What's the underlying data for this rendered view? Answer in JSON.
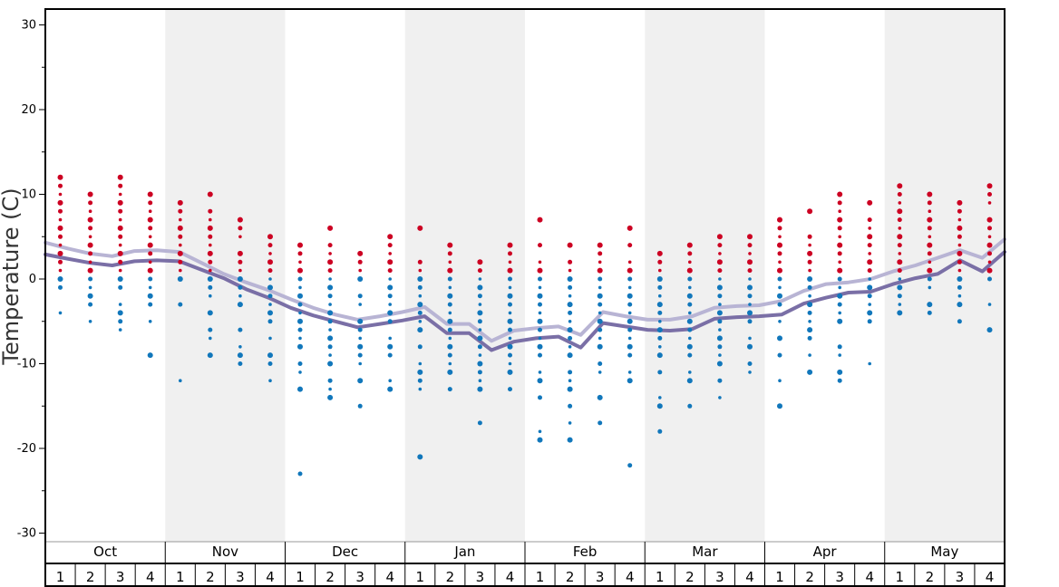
{
  "chart_data": {
    "type": "scatter",
    "ylabel": "Temperature (C)",
    "ylim": [
      -31,
      32
    ],
    "y_ticks": [
      30,
      20,
      10,
      0,
      -10,
      -20,
      -30
    ],
    "months": [
      "Oct",
      "Nov",
      "Dec",
      "Jan",
      "Feb",
      "Mar",
      "Apr",
      "May"
    ],
    "week_labels": [
      "1",
      "2",
      "3",
      "4"
    ],
    "colors": {
      "warm_dot": "#cc0022",
      "cold_dot": "#1177bb",
      "band_shade": "#f0f0f0",
      "line_light": "#b8b4d4",
      "line_dark": "#7a6fa6"
    },
    "series": [
      {
        "values": [
          4.3,
          3.6,
          3.0,
          2.7,
          3.3,
          3.4,
          3.2,
          1.9,
          0.6,
          -0.4,
          -1.3,
          -2.4,
          -3.4,
          -4.2,
          -4.8,
          -4.4,
          -3.9,
          -3.3,
          -5.3,
          -5.3,
          -7.3,
          -6.1,
          -5.8,
          -5.6,
          -6.6,
          -3.9,
          -4.4,
          -4.8,
          -4.8,
          -4.4,
          -3.4,
          -3.2,
          -3.1,
          -2.6,
          -1.4,
          -0.6,
          -0.4,
          0.0,
          0.9,
          1.6,
          2.5,
          3.4,
          2.5,
          4.7
        ]
      },
      {
        "values": [
          2.9,
          2.4,
          1.9,
          1.6,
          2.1,
          2.2,
          2.1,
          1.1,
          0.1,
          -1.2,
          -2.2,
          -3.4,
          -4.3,
          -5.0,
          -5.7,
          -5.3,
          -4.9,
          -4.4,
          -6.4,
          -6.4,
          -8.4,
          -7.4,
          -7.0,
          -6.8,
          -8.1,
          -5.2,
          -5.6,
          -6.0,
          -6.1,
          -5.9,
          -4.7,
          -4.5,
          -4.4,
          -4.2,
          -2.9,
          -2.2,
          -1.6,
          -1.5,
          -0.6,
          0.1,
          0.6,
          2.2,
          0.9,
          3.2
        ]
      }
    ],
    "dot_columns": [
      {
        "week": "Oct 1",
        "values": [
          12,
          11,
          10,
          9,
          8,
          7,
          6,
          5,
          4,
          3,
          2,
          1,
          0,
          -1,
          -4
        ]
      },
      {
        "week": "Oct 2",
        "values": [
          10,
          9,
          8,
          7,
          6,
          5,
          4,
          3,
          2,
          1,
          0,
          -1,
          -2,
          -3,
          -5
        ]
      },
      {
        "week": "Oct 3",
        "values": [
          12,
          11,
          10,
          9,
          8,
          7,
          6,
          5,
          4,
          3,
          2,
          1,
          0,
          -1,
          -3,
          -4,
          -5,
          -6
        ]
      },
      {
        "week": "Oct 4",
        "values": [
          10,
          9,
          8,
          7,
          6,
          5,
          4,
          3,
          2,
          1,
          0,
          -1,
          -2,
          -3,
          -5,
          -9
        ]
      },
      {
        "week": "Nov 1",
        "values": [
          9,
          8,
          7,
          6,
          5,
          4,
          3,
          2,
          1,
          0,
          -3,
          -12
        ]
      },
      {
        "week": "Nov 2",
        "values": [
          10,
          8,
          7,
          6,
          5,
          4,
          3,
          2,
          1,
          0,
          -1,
          -2,
          -4,
          -6,
          -7,
          -9
        ]
      },
      {
        "week": "Nov 3",
        "values": [
          7,
          6,
          5,
          3,
          2,
          1,
          0,
          -1,
          -2,
          -3,
          -6,
          -8,
          -9,
          -10
        ]
      },
      {
        "week": "Nov 4",
        "values": [
          5,
          4,
          3,
          2,
          1,
          0,
          -1,
          -2,
          -3,
          -4,
          -5,
          -7,
          -9,
          -10,
          -12
        ]
      },
      {
        "week": "Dec 1",
        "values": [
          4,
          3,
          2,
          1,
          0,
          -1,
          -2,
          -3,
          -4,
          -5,
          -6,
          -7,
          -8,
          -10,
          -11,
          -13,
          -23
        ]
      },
      {
        "week": "Dec 2",
        "values": [
          6,
          4,
          3,
          2,
          1,
          0,
          -1,
          -2,
          -3,
          -4,
          -5,
          -6,
          -7,
          -8,
          -9,
          -10,
          -12,
          -13,
          -14
        ]
      },
      {
        "week": "Dec 3",
        "values": [
          3,
          2,
          1,
          0,
          -2,
          -3,
          -5,
          -6,
          -7,
          -8,
          -9,
          -10,
          -12,
          -15
        ]
      },
      {
        "week": "Dec 4",
        "values": [
          5,
          4,
          3,
          2,
          1,
          0,
          -1,
          -2,
          -3,
          -4,
          -5,
          -7,
          -8,
          -9,
          -12,
          -13
        ]
      },
      {
        "week": "Jan 1",
        "values": [
          6,
          2,
          1,
          0,
          -1,
          -2,
          -3,
          -4,
          -5,
          -6,
          -8,
          -10,
          -11,
          -12,
          -13,
          -21
        ]
      },
      {
        "week": "Jan 2",
        "values": [
          4,
          3,
          2,
          1,
          0,
          -1,
          -2,
          -3,
          -4,
          -5,
          -6,
          -7,
          -8,
          -9,
          -10,
          -11,
          -13
        ]
      },
      {
        "week": "Jan 3",
        "values": [
          2,
          1,
          0,
          -1,
          -2,
          -3,
          -4,
          -5,
          -6,
          -7,
          -8,
          -9,
          -10,
          -11,
          -12,
          -13,
          -17
        ]
      },
      {
        "week": "Jan 4",
        "values": [
          4,
          3,
          2,
          1,
          0,
          -1,
          -2,
          -3,
          -4,
          -5,
          -6,
          -7,
          -8,
          -9,
          -10,
          -11,
          -13
        ]
      },
      {
        "week": "Feb 1",
        "values": [
          7,
          4,
          2,
          1,
          0,
          -1,
          -2,
          -3,
          -4,
          -5,
          -6,
          -7,
          -8,
          -9,
          -11,
          -12,
          -14,
          -18,
          -19
        ]
      },
      {
        "week": "Feb 2",
        "values": [
          4,
          2,
          1,
          0,
          -1,
          -2,
          -3,
          -4,
          -5,
          -6,
          -7,
          -8,
          -9,
          -11,
          -12,
          -13,
          -15,
          -17,
          -19
        ]
      },
      {
        "week": "Feb 3",
        "values": [
          4,
          3,
          2,
          1,
          0,
          -1,
          -2,
          -3,
          -4,
          -5,
          -6,
          -7,
          -8,
          -10,
          -11,
          -14,
          -17
        ]
      },
      {
        "week": "Feb 4",
        "values": [
          6,
          4,
          2,
          1,
          0,
          -1,
          -2,
          -3,
          -4,
          -5,
          -6,
          -7,
          -8,
          -9,
          -11,
          -12,
          -22
        ]
      },
      {
        "week": "Mar 1",
        "values": [
          3,
          2,
          1,
          0,
          -1,
          -2,
          -3,
          -4,
          -5,
          -6,
          -7,
          -8,
          -9,
          -11,
          -14,
          -15,
          -18
        ]
      },
      {
        "week": "Mar 2",
        "values": [
          4,
          3,
          2,
          1,
          0,
          -1,
          -2,
          -3,
          -4,
          -5,
          -6,
          -7,
          -8,
          -9,
          -11,
          -12,
          -15
        ]
      },
      {
        "week": "Mar 3",
        "values": [
          5,
          4,
          3,
          2,
          1,
          0,
          -1,
          -2,
          -3,
          -4,
          -5,
          -6,
          -7,
          -8,
          -9,
          -10,
          -12,
          -14
        ]
      },
      {
        "week": "Mar 4",
        "values": [
          5,
          4,
          3,
          2,
          1,
          0,
          -1,
          -2,
          -3,
          -4,
          -5,
          -7,
          -8,
          -10,
          -11
        ]
      },
      {
        "week": "Apr 1",
        "values": [
          7,
          6,
          5,
          4,
          3,
          2,
          1,
          0,
          -1,
          -2,
          -3,
          -5,
          -7,
          -9,
          -12,
          -15
        ]
      },
      {
        "week": "Apr 2",
        "values": [
          8,
          5,
          4,
          3,
          2,
          1,
          0,
          -1,
          -2,
          -3,
          -4,
          -5,
          -6,
          -7,
          -9,
          -11
        ]
      },
      {
        "week": "Apr 3",
        "values": [
          10,
          9,
          8,
          7,
          6,
          5,
          4,
          3,
          2,
          1,
          0,
          -1,
          -2,
          -3,
          -4,
          -5,
          -8,
          -9,
          -11,
          -12
        ]
      },
      {
        "week": "Apr 4",
        "values": [
          9,
          7,
          6,
          5,
          4,
          3,
          2,
          1,
          0,
          -1,
          -2,
          -3,
          -4,
          -5,
          -10
        ]
      },
      {
        "week": "May 1",
        "values": [
          11,
          10,
          9,
          8,
          7,
          6,
          5,
          4,
          3,
          2,
          1,
          0,
          -1,
          -2,
          -3,
          -4
        ]
      },
      {
        "week": "May 2",
        "values": [
          10,
          9,
          8,
          7,
          6,
          5,
          4,
          3,
          2,
          1,
          0,
          -1,
          -3,
          -4
        ]
      },
      {
        "week": "May 3",
        "values": [
          9,
          8,
          7,
          6,
          5,
          4,
          3,
          2,
          1,
          0,
          -1,
          -2,
          -3,
          -5
        ]
      },
      {
        "week": "May 4",
        "values": [
          11,
          10,
          9,
          7,
          6,
          5,
          4,
          3,
          2,
          1,
          0,
          -3,
          -6
        ]
      }
    ]
  }
}
